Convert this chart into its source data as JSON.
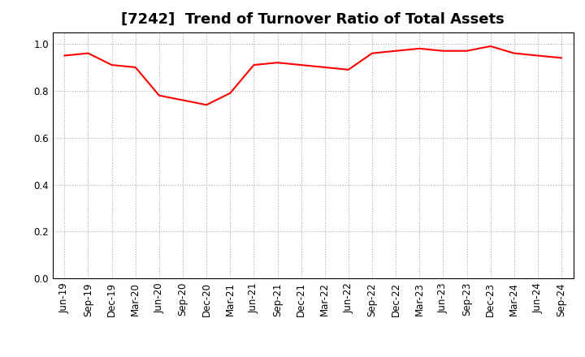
{
  "title": "[7242]  Trend of Turnover Ratio of Total Assets",
  "labels": [
    "Jun-19",
    "Sep-19",
    "Dec-19",
    "Mar-20",
    "Jun-20",
    "Sep-20",
    "Dec-20",
    "Mar-21",
    "Jun-21",
    "Sep-21",
    "Dec-21",
    "Mar-22",
    "Jun-22",
    "Sep-22",
    "Dec-22",
    "Mar-23",
    "Jun-23",
    "Sep-23",
    "Dec-23",
    "Mar-24",
    "Jun-24",
    "Sep-24"
  ],
  "values": [
    0.95,
    0.96,
    0.91,
    0.9,
    0.78,
    0.76,
    0.74,
    0.79,
    0.91,
    0.92,
    0.91,
    0.9,
    0.89,
    0.96,
    0.97,
    0.98,
    0.97,
    0.97,
    0.99,
    0.96,
    0.95,
    0.94
  ],
  "line_color": "#FF0000",
  "background_color": "#FFFFFF",
  "grid_color": "#AAAAAA",
  "ylim": [
    0.0,
    1.05
  ],
  "yticks": [
    0.0,
    0.2,
    0.4,
    0.6,
    0.8,
    1.0
  ],
  "title_fontsize": 13,
  "tick_fontsize": 8.5
}
